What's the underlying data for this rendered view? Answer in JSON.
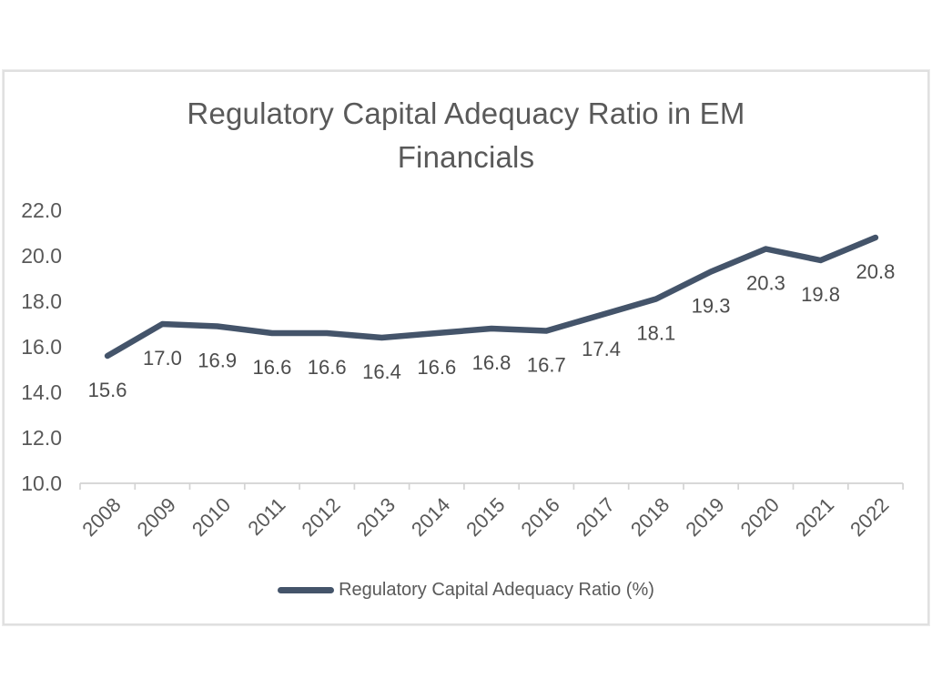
{
  "chart_data": {
    "type": "line",
    "title": "Regulatory Capital Adequacy Ratio in EM Financials",
    "title_lines": [
      "Regulatory Capital Adequacy Ratio in EM",
      "Financials"
    ],
    "categories": [
      "2008",
      "2009",
      "2010",
      "2011",
      "2012",
      "2013",
      "2014",
      "2015",
      "2016",
      "2017",
      "2018",
      "2019",
      "2020",
      "2021",
      "2022"
    ],
    "series": [
      {
        "name": "Regulatory Capital Adequacy Ratio (%)",
        "values": [
          15.6,
          17.0,
          16.9,
          16.6,
          16.6,
          16.4,
          16.6,
          16.8,
          16.7,
          17.4,
          18.1,
          19.3,
          20.3,
          19.8,
          20.8
        ]
      }
    ],
    "data_labels_shown": true,
    "xlabel": "",
    "ylabel": "",
    "ylim": [
      10.0,
      22.0
    ],
    "ytick_step": 2.0,
    "ytick_labels": [
      "10.0",
      "12.0",
      "14.0",
      "16.0",
      "18.0",
      "20.0",
      "22.0"
    ],
    "grid": false,
    "legend_position": "bottom",
    "x_tick_angle_deg": -45,
    "line_color": "#44546A",
    "label_color": "#595959",
    "data_label_color": "#4c4c4c",
    "axis_color": "#d3d3d3",
    "frame_border_color": "#e0e0e0"
  }
}
